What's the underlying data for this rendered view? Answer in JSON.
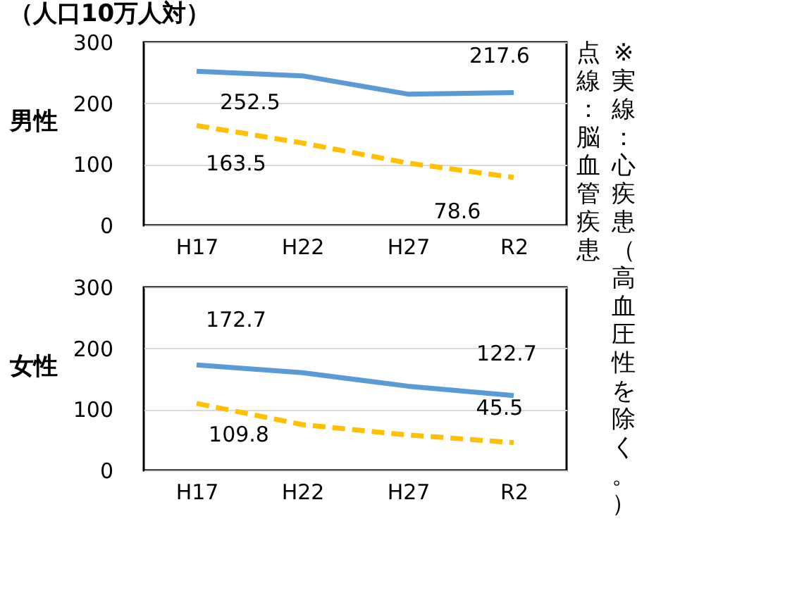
{
  "chart_data": [
    {
      "type": "line",
      "title": "（人口10万人対）",
      "ylabel": "男性",
      "categories": [
        "H17",
        "H22",
        "H27",
        "R2"
      ],
      "ylim": [
        0,
        300
      ],
      "yticks": [
        0,
        100,
        200,
        300
      ],
      "grid": "y",
      "series": [
        {
          "color": "#5b9bd5",
          "line_style": "solid",
          "values": [
            252.5,
            245,
            215,
            217.6
          ]
        },
        {
          "color": "#ffc000",
          "line_style": "dashed",
          "values": [
            163.5,
            135,
            102,
            78.6
          ]
        }
      ],
      "annotations": [
        {
          "text": "252.5",
          "x": "H17",
          "y": 252.5
        },
        {
          "text": "217.6",
          "x": "R2",
          "y": 217.6
        },
        {
          "text": "163.5",
          "x": "H17",
          "y": 163.5
        },
        {
          "text": "78.6",
          "x": "R2",
          "y": 78.6
        },
        "※実線：心疾患（高血圧性を除く。）",
        "点線：脳血管疾患"
      ]
    },
    {
      "type": "line",
      "ylabel": "女性",
      "categories": [
        "H17",
        "H22",
        "H27",
        "R2"
      ],
      "ylim": [
        0,
        300
      ],
      "yticks": [
        0,
        100,
        200,
        300
      ],
      "grid": "y",
      "series": [
        {
          "color": "#5b9bd5",
          "line_style": "solid",
          "values": [
            172.7,
            160,
            138,
            122.7
          ]
        },
        {
          "color": "#ffc000",
          "line_style": "dashed",
          "values": [
            109.8,
            75,
            58,
            45.5
          ]
        }
      ],
      "annotations": [
        {
          "text": "172.7",
          "x": "H17",
          "y": 172.7
        },
        {
          "text": "122.7",
          "x": "R2",
          "y": 122.7
        },
        {
          "text": "109.8",
          "x": "H17",
          "y": 109.8
        },
        {
          "text": "45.5",
          "x": "R2",
          "y": 45.5
        }
      ]
    }
  ]
}
